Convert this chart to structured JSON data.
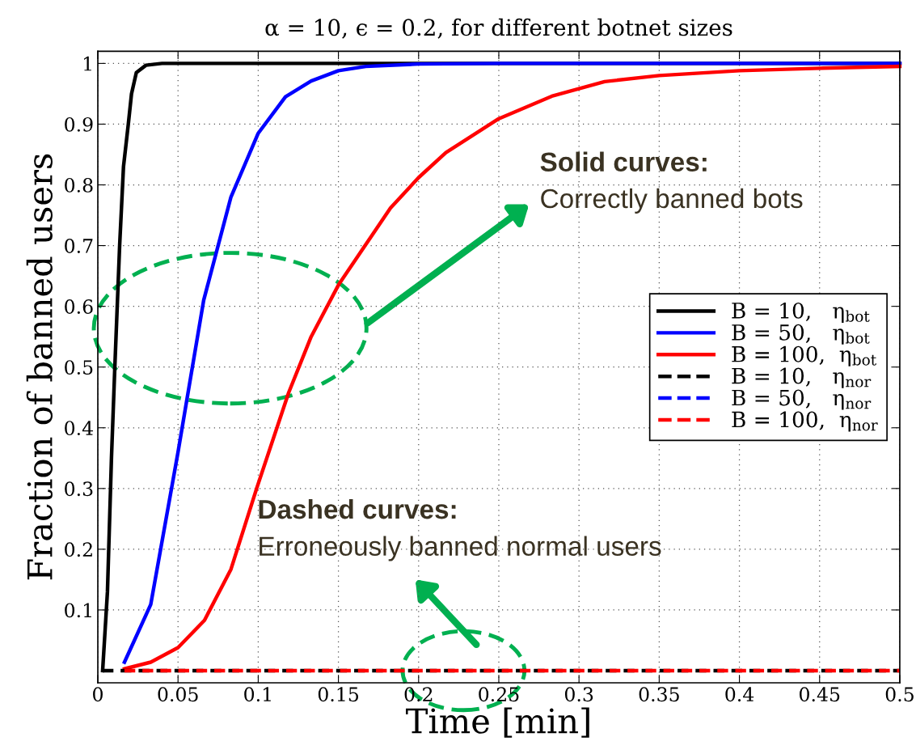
{
  "chart_data": {
    "type": "line",
    "title": "α = 10, ϵ = 0.2, for different botnet sizes",
    "xlabel": "Time [min]",
    "ylabel": "Fraction of banned users",
    "series": [
      {
        "name": "B = 10,   η$_{bot}$",
        "color": "#000000",
        "line_style": "solid",
        "x": [
          0.003,
          0.006,
          0.0085,
          0.0106,
          0.0136,
          0.016,
          0.019,
          0.021,
          0.024,
          0.03,
          0.04,
          0.5
        ],
        "values": [
          0,
          0.13,
          0.35,
          0.5,
          0.7,
          0.83,
          0.9,
          0.95,
          0.985,
          0.997,
          1.0,
          1.0
        ]
      },
      {
        "name": "B = 50,   η$_{bot}$",
        "color": "#0000ff",
        "line_style": "solid",
        "x": [
          0.0166,
          0.033,
          0.05,
          0.066,
          0.083,
          0.1,
          0.117,
          0.133,
          0.15,
          0.167,
          0.2,
          0.25,
          0.5
        ],
        "values": [
          0.014,
          0.109,
          0.36,
          0.61,
          0.78,
          0.885,
          0.945,
          0.971,
          0.988,
          0.995,
          0.999,
          1.0,
          1.0
        ]
      },
      {
        "name": "B = 100,  η$_{bot}$",
        "color": "#ff0000",
        "line_style": "solid",
        "x": [
          0.0166,
          0.033,
          0.05,
          0.0665,
          0.083,
          0.099,
          0.119,
          0.133,
          0.15,
          0.1825,
          0.2,
          0.217,
          0.25,
          0.283,
          0.316,
          0.35,
          0.4,
          0.45,
          0.5
        ],
        "values": [
          0.003,
          0.014,
          0.038,
          0.083,
          0.167,
          0.3,
          0.458,
          0.55,
          0.635,
          0.762,
          0.812,
          0.853,
          0.909,
          0.946,
          0.97,
          0.98,
          0.988,
          0.992,
          0.995
        ]
      },
      {
        "name": "B = 10,   η$_{nor}$",
        "color": "#000000",
        "line_style": "dashed",
        "x": [
          0.003,
          0.5
        ],
        "values": [
          0,
          0
        ]
      },
      {
        "name": "B = 50,   η$_{nor}$",
        "color": "#0000ff",
        "line_style": "dashed"
      },
      {
        "name": "B = 100,  η$_{nor}$",
        "color": "#ff0000",
        "line_style": "dashed",
        "x": [
          0.0166,
          0.5
        ],
        "values": [
          0,
          0
        ]
      }
    ],
    "xlim": [
      0,
      0.5
    ],
    "ylim": [
      -0.02,
      1.02
    ],
    "xticks": [
      0,
      0.05,
      0.1,
      0.15,
      0.2,
      0.25,
      0.3,
      0.35,
      0.4,
      0.45,
      0.5
    ],
    "yticks": [
      0.1,
      0.2,
      0.3,
      0.4,
      0.5,
      0.6,
      0.7,
      0.8,
      0.9,
      1
    ],
    "grid": true,
    "legend": "right",
    "annotations": [
      "Solid curves:",
      "Correctly banned bots",
      "Dashed curves:",
      "Erroneously banned normal users"
    ]
  }
}
